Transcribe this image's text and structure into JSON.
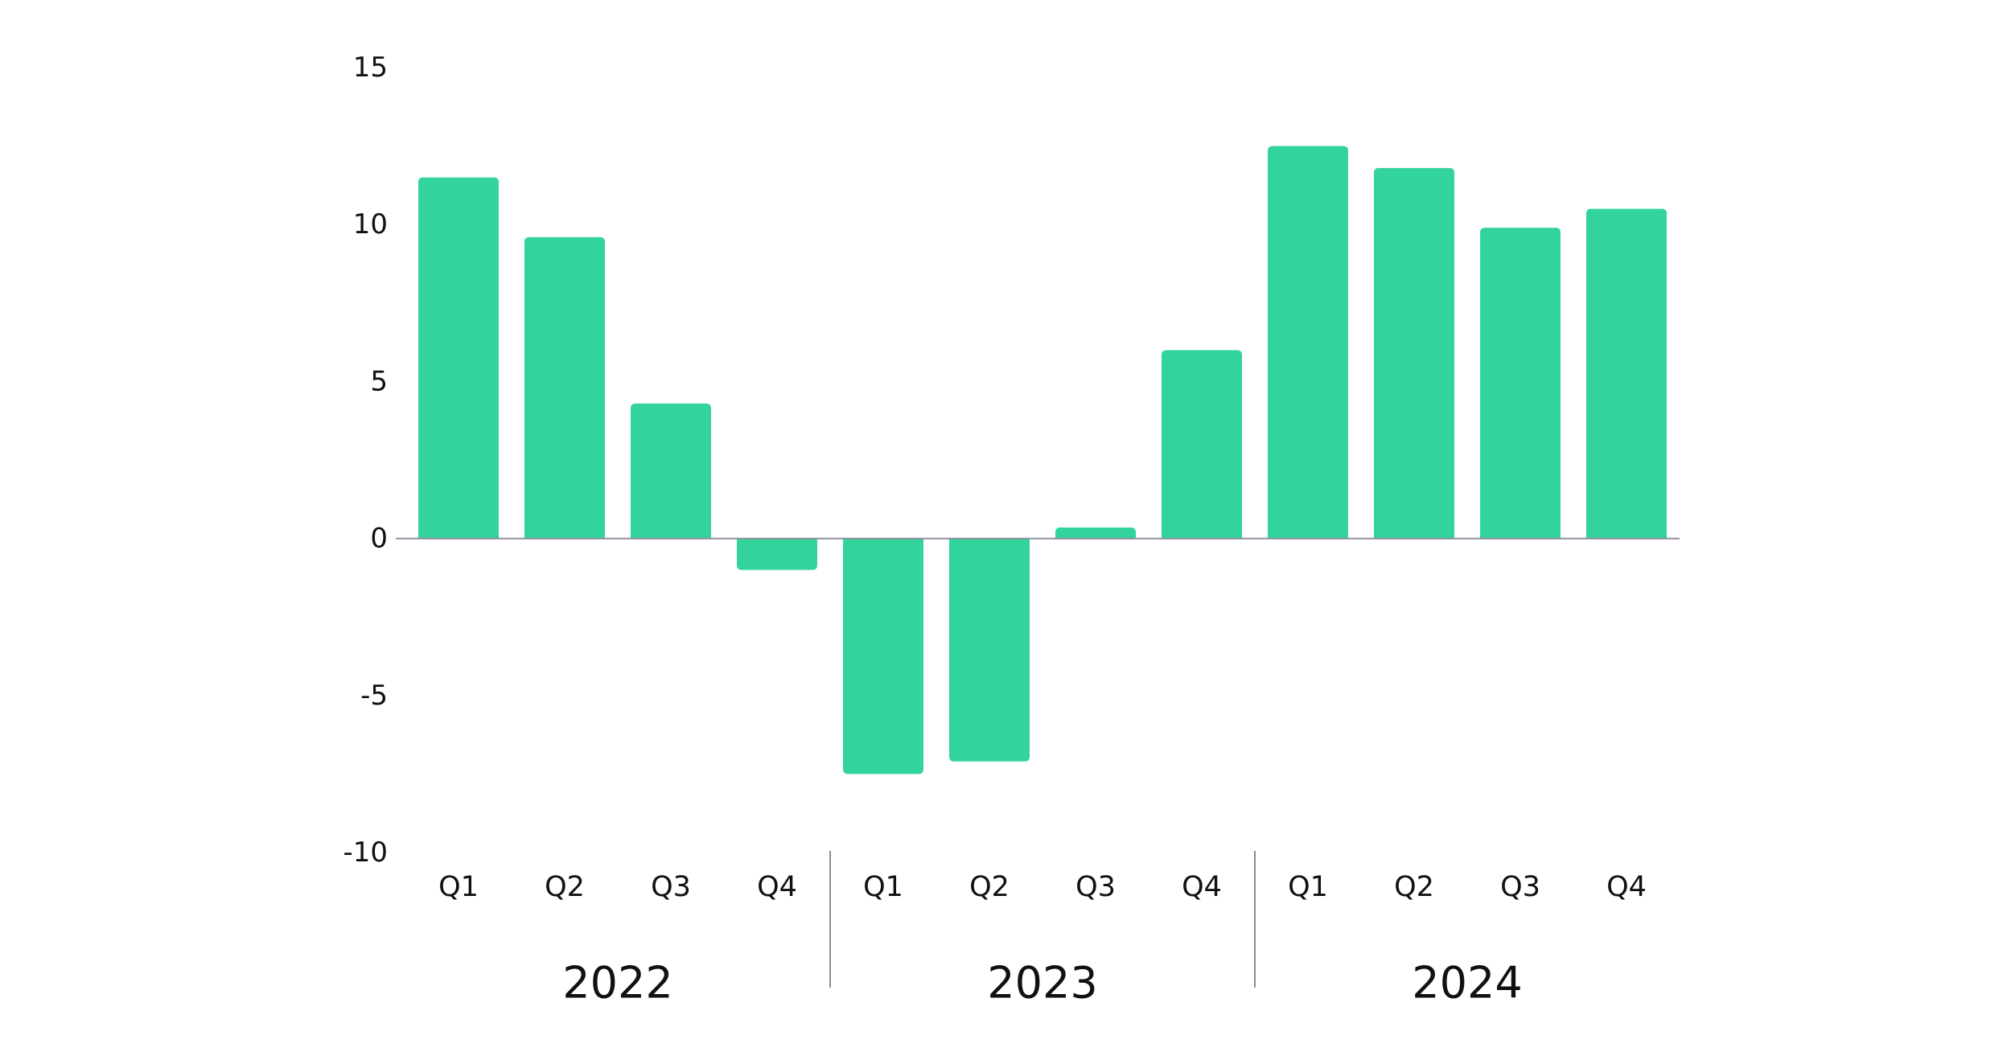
{
  "chart_data": {
    "type": "bar",
    "title": "",
    "xlabel": "",
    "ylabel": "",
    "ylim": [
      -10,
      15
    ],
    "yticks": [
      "15",
      "10",
      "5",
      "0",
      "-5",
      "-10"
    ],
    "categories": [
      "Q1",
      "Q2",
      "Q3",
      "Q4",
      "Q1",
      "Q2",
      "Q3",
      "Q4",
      "Q1",
      "Q2",
      "Q3",
      "Q4"
    ],
    "groups": [
      {
        "label": "2022",
        "count": 4
      },
      {
        "label": "2023",
        "count": 4
      },
      {
        "label": "2024",
        "count": 4
      }
    ],
    "values": [
      11.5,
      9.6,
      4.3,
      -1.0,
      -7.5,
      -7.1,
      0.35,
      6.0,
      12.5,
      11.8,
      9.9,
      10.5
    ],
    "grid": false,
    "legend": "none",
    "colors": {
      "bar": "#33d49c",
      "axis": "#8b8b9e",
      "text": "#111111"
    }
  }
}
